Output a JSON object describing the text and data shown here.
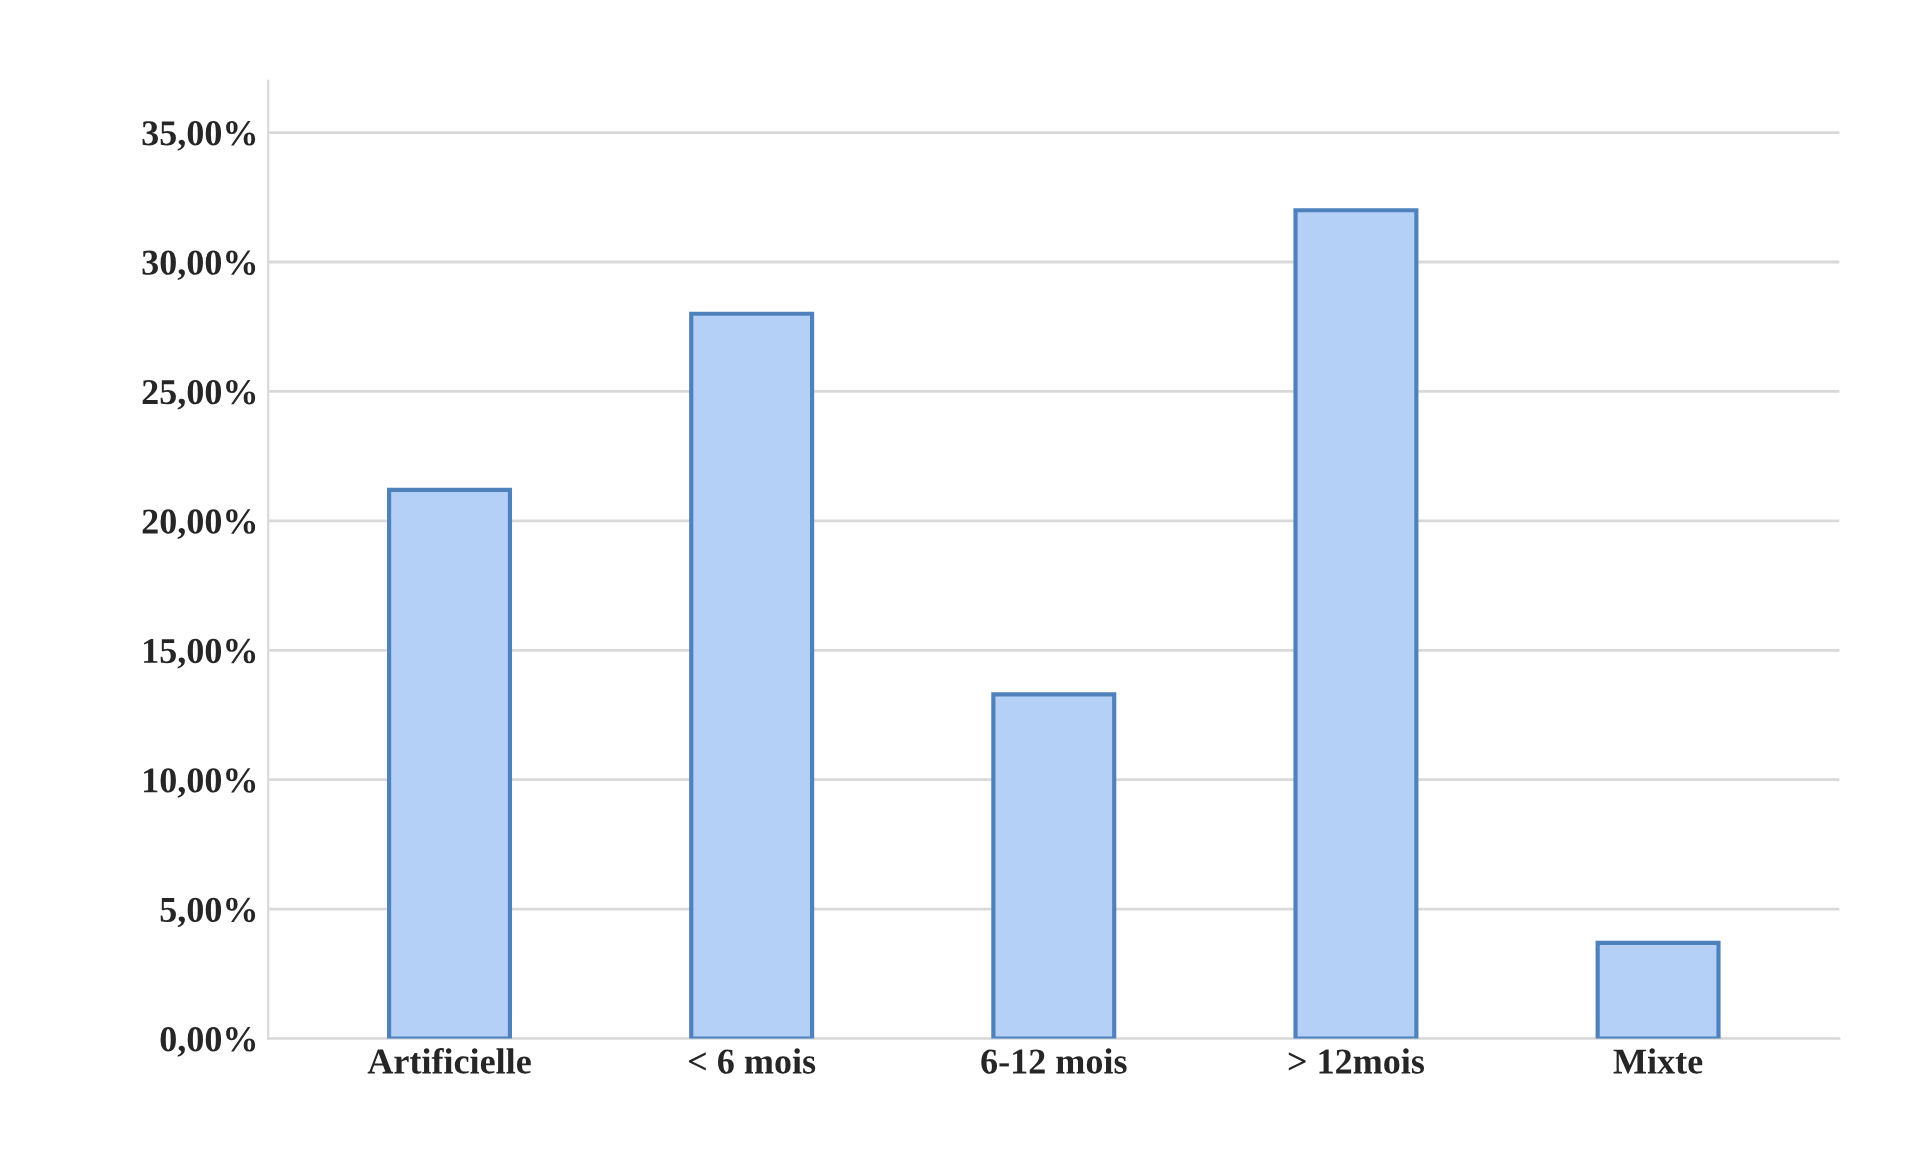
{
  "chart_data": {
    "type": "bar",
    "categories": [
      "Artificielle",
      "< 6 mois",
      "6-12 mois",
      "> 12mois",
      "Mixte"
    ],
    "values": [
      21.2,
      28.0,
      13.3,
      32.0,
      3.7
    ],
    "color": "#b4d0f7",
    "ylim": [
      0,
      37
    ],
    "yticks": [
      {
        "value": 0,
        "label": "0,00%"
      },
      {
        "value": 5,
        "label": "5,00%"
      },
      {
        "value": 10,
        "label": "10,00%"
      },
      {
        "value": 15,
        "label": "15,00%"
      },
      {
        "value": 20,
        "label": "20,00%"
      },
      {
        "value": 25,
        "label": "25,00%"
      },
      {
        "value": 30,
        "label": "30,00%"
      },
      {
        "value": 35,
        "label": "35,00%"
      }
    ],
    "grid": "y"
  }
}
